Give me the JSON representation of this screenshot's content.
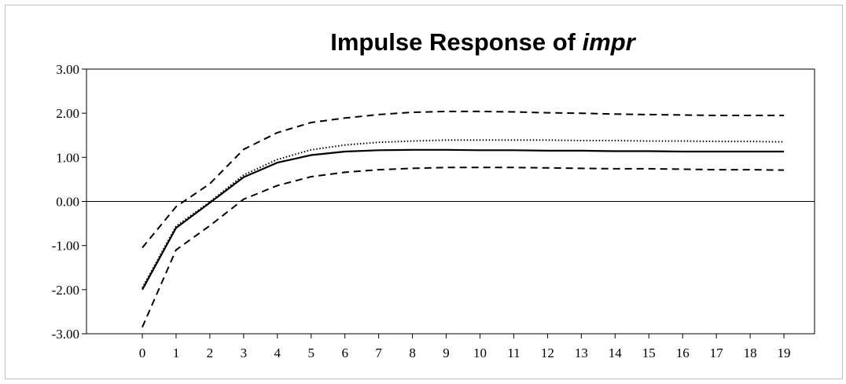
{
  "chart_data": {
    "type": "line",
    "title_main": "Impulse Response of ",
    "title_var": "impr",
    "xlabel": "",
    "ylabel": "",
    "x": [
      0,
      1,
      2,
      3,
      4,
      5,
      6,
      7,
      8,
      9,
      10,
      11,
      12,
      13,
      14,
      15,
      16,
      17,
      18,
      19
    ],
    "x_ticks": [
      "0",
      "1",
      "2",
      "3",
      "4",
      "5",
      "6",
      "7",
      "8",
      "9",
      "10",
      "11",
      "12",
      "13",
      "14",
      "15",
      "16",
      "17",
      "18",
      "19"
    ],
    "y_ticks": [
      "3.00",
      "2.00",
      "1.00",
      "0.00",
      "-1.00",
      "-2.00",
      "-3.00"
    ],
    "ylim": [
      -3,
      3
    ],
    "zero_line": true,
    "grid": false,
    "legend": "none",
    "series": [
      {
        "style": "solid",
        "values": [
          -2.0,
          -0.6,
          -0.03,
          0.55,
          0.88,
          1.05,
          1.13,
          1.16,
          1.17,
          1.17,
          1.16,
          1.16,
          1.15,
          1.15,
          1.14,
          1.14,
          1.13,
          1.13,
          1.13,
          1.13
        ]
      },
      {
        "style": "dotted",
        "values": [
          -1.96,
          -0.56,
          -0.01,
          0.6,
          0.95,
          1.17,
          1.28,
          1.34,
          1.37,
          1.39,
          1.39,
          1.39,
          1.39,
          1.38,
          1.38,
          1.37,
          1.37,
          1.36,
          1.36,
          1.35
        ]
      },
      {
        "style": "dashed",
        "values": [
          -1.05,
          -0.12,
          0.4,
          1.18,
          1.56,
          1.79,
          1.89,
          1.97,
          2.02,
          2.04,
          2.04,
          2.03,
          2.01,
          2.0,
          1.98,
          1.97,
          1.96,
          1.95,
          1.95,
          1.95
        ]
      },
      {
        "style": "dashed",
        "values": [
          -2.85,
          -1.1,
          -0.55,
          0.05,
          0.36,
          0.56,
          0.66,
          0.72,
          0.75,
          0.77,
          0.77,
          0.77,
          0.76,
          0.75,
          0.74,
          0.74,
          0.73,
          0.72,
          0.72,
          0.71
        ]
      }
    ]
  }
}
